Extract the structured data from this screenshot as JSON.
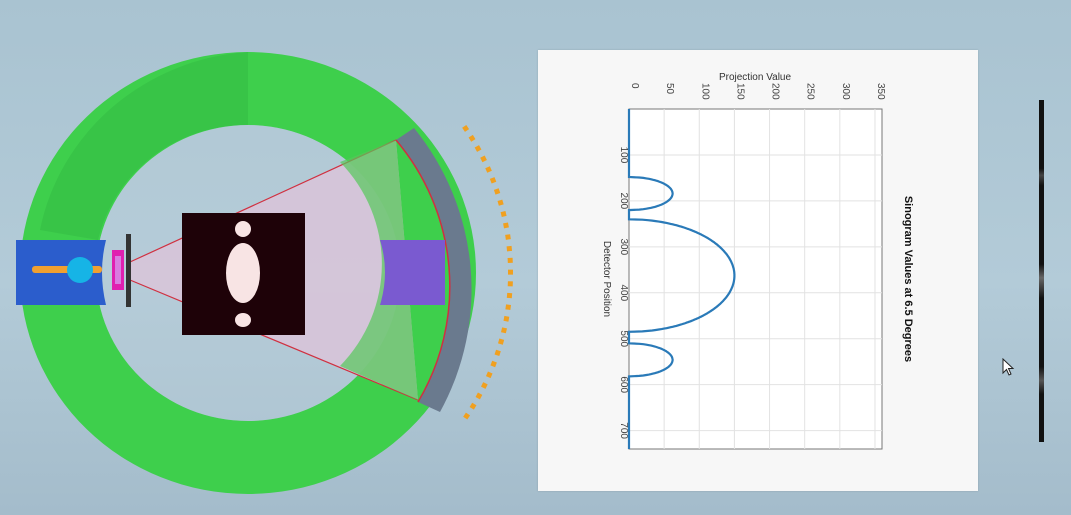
{
  "scene": {
    "colors": {
      "gantry": "#3ecf4c",
      "source": "#2b5dcc",
      "source_beam": "#f0a030",
      "source_focus": "#16b4e6",
      "filter": "#e020b0",
      "collimator": "#333333",
      "fan_beam": "#d9c4d9",
      "fan_edge": "#d03040",
      "phantom_bg": "#1e0208",
      "phantom_shape": "#f8e4e4",
      "detector_arc": "#6a7a8e",
      "detector_elements": "#f0a020",
      "detector_housing": "#7a5ad0"
    },
    "icons": [
      "xray-source-icon",
      "detector-array-icon",
      "phantom-icon",
      "cursor-icon"
    ]
  },
  "chart_data": {
    "type": "line",
    "title": "Sinogram Values at 6.5 Degrees",
    "xlabel": "Projection Value",
    "ylabel": "Detector Position",
    "x_ticks": [
      "0",
      "50",
      "100",
      "150",
      "200",
      "250",
      "300",
      "350"
    ],
    "y_ticks": [
      "100",
      "200",
      "300",
      "400",
      "500",
      "600",
      "700"
    ],
    "xlim": [
      0,
      360
    ],
    "ylim": [
      0,
      740
    ],
    "orientation": "rotated-90",
    "grid": true,
    "series": [
      {
        "color": "#2a7ab8",
        "lobes": [
          {
            "start": 148,
            "end": 220,
            "peak": 62
          },
          {
            "start": 240,
            "end": 485,
            "peak": 150
          },
          {
            "start": 510,
            "end": 582,
            "peak": 62
          }
        ]
      }
    ]
  }
}
